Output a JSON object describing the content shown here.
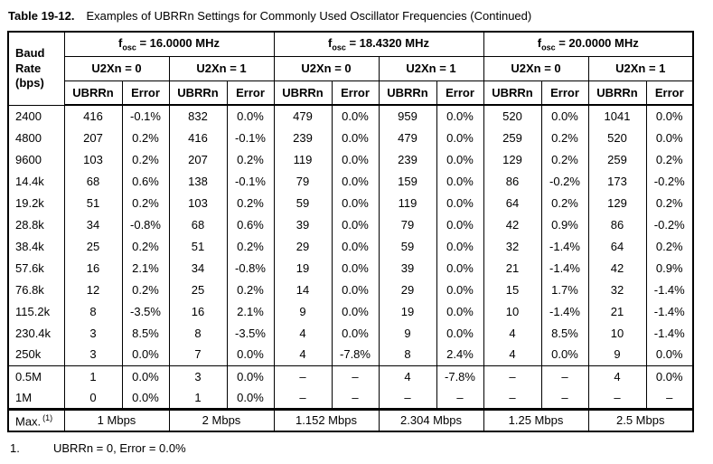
{
  "title": {
    "number": "Table 19-12.",
    "text": "Examples of UBRRn Settings for Commonly Used Oscillator Frequencies (Continued)"
  },
  "table": {
    "baud_header_lines": {
      "line1": "Baud",
      "line2": "Rate",
      "line3": "(bps)"
    },
    "col_headers": {
      "ubrr": "UBRRn",
      "error": "Error"
    },
    "groups": [
      {
        "symbol": "f",
        "subscript": "osc",
        "value": " = 16.0000 MHz",
        "u2x": [
          "U2Xn = 0",
          "U2Xn = 1"
        ]
      },
      {
        "symbol": "f",
        "subscript": "osc",
        "value": " = 18.4320 MHz",
        "u2x": [
          "U2Xn = 0",
          "U2Xn = 1"
        ]
      },
      {
        "symbol": "f",
        "subscript": "osc",
        "value": " = 20.0000 MHz",
        "u2x": [
          "U2Xn = 0",
          "U2Xn = 1"
        ]
      }
    ],
    "rows": [
      {
        "baud": "2400",
        "cells": [
          "416",
          "-0.1%",
          "832",
          "0.0%",
          "479",
          "0.0%",
          "959",
          "0.0%",
          "520",
          "0.0%",
          "1041",
          "0.0%"
        ]
      },
      {
        "baud": "4800",
        "cells": [
          "207",
          "0.2%",
          "416",
          "-0.1%",
          "239",
          "0.0%",
          "479",
          "0.0%",
          "259",
          "0.2%",
          "520",
          "0.0%"
        ]
      },
      {
        "baud": "9600",
        "cells": [
          "103",
          "0.2%",
          "207",
          "0.2%",
          "119",
          "0.0%",
          "239",
          "0.0%",
          "129",
          "0.2%",
          "259",
          "0.2%"
        ]
      },
      {
        "baud": "14.4k",
        "cells": [
          "68",
          "0.6%",
          "138",
          "-0.1%",
          "79",
          "0.0%",
          "159",
          "0.0%",
          "86",
          "-0.2%",
          "173",
          "-0.2%"
        ]
      },
      {
        "baud": "19.2k",
        "cells": [
          "51",
          "0.2%",
          "103",
          "0.2%",
          "59",
          "0.0%",
          "119",
          "0.0%",
          "64",
          "0.2%",
          "129",
          "0.2%"
        ]
      },
      {
        "baud": "28.8k",
        "cells": [
          "34",
          "-0.8%",
          "68",
          "0.6%",
          "39",
          "0.0%",
          "79",
          "0.0%",
          "42",
          "0.9%",
          "86",
          "-0.2%"
        ]
      },
      {
        "baud": "38.4k",
        "cells": [
          "25",
          "0.2%",
          "51",
          "0.2%",
          "29",
          "0.0%",
          "59",
          "0.0%",
          "32",
          "-1.4%",
          "64",
          "0.2%"
        ]
      },
      {
        "baud": "57.6k",
        "cells": [
          "16",
          "2.1%",
          "34",
          "-0.8%",
          "19",
          "0.0%",
          "39",
          "0.0%",
          "21",
          "-1.4%",
          "42",
          "0.9%"
        ]
      },
      {
        "baud": "76.8k",
        "cells": [
          "12",
          "0.2%",
          "25",
          "0.2%",
          "14",
          "0.0%",
          "29",
          "0.0%",
          "15",
          "1.7%",
          "32",
          "-1.4%"
        ]
      },
      {
        "baud": "115.2k",
        "cells": [
          "8",
          "-3.5%",
          "16",
          "2.1%",
          "9",
          "0.0%",
          "19",
          "0.0%",
          "10",
          "-1.4%",
          "21",
          "-1.4%"
        ]
      },
      {
        "baud": "230.4k",
        "cells": [
          "3",
          "8.5%",
          "8",
          "-3.5%",
          "4",
          "0.0%",
          "9",
          "0.0%",
          "4",
          "8.5%",
          "10",
          "-1.4%"
        ]
      },
      {
        "baud": "250k",
        "cells": [
          "3",
          "0.0%",
          "7",
          "0.0%",
          "4",
          "-7.8%",
          "8",
          "2.4%",
          "4",
          "0.0%",
          "9",
          "0.0%"
        ]
      },
      {
        "baud": "0.5M",
        "cells": [
          "1",
          "0.0%",
          "3",
          "0.0%",
          "–",
          "–",
          "4",
          "-7.8%",
          "–",
          "–",
          "4",
          "0.0%"
        ],
        "section_break": true
      },
      {
        "baud": "1M",
        "cells": [
          "0",
          "0.0%",
          "1",
          "0.0%",
          "–",
          "–",
          "–",
          "–",
          "–",
          "–",
          "–",
          "–"
        ]
      }
    ],
    "max_row": {
      "label": "Max.",
      "sup": "(1)",
      "cells": [
        "1 Mbps",
        "2 Mbps",
        "1.152 Mbps",
        "2.304 Mbps",
        "1.25 Mbps",
        "2.5 Mbps"
      ]
    }
  },
  "footnote": {
    "number": "1.",
    "text": "UBRRn = 0, Error = 0.0%"
  }
}
